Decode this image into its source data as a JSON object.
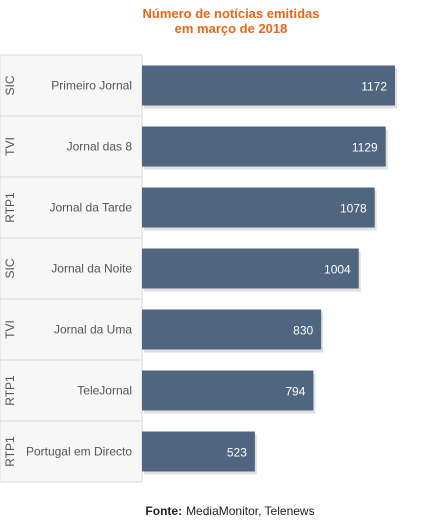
{
  "chart_data": {
    "type": "bar",
    "orientation": "horizontal",
    "title_line1": "Número de notícias emitidas",
    "title_line2": "em março de 2018",
    "categories": [
      "Primeiro Jornal",
      "Jornal das 8",
      "Jornal da Tarde",
      "Jornal da Noite",
      "Jornal da Uma",
      "TeleJornal",
      "Portugal em Directo"
    ],
    "channels": [
      "SIC",
      "TVI",
      "RTP1",
      "SIC",
      "TVI",
      "RTP1",
      "RTP1"
    ],
    "series": [
      {
        "values": [
          1172,
          1129,
          1078,
          1004,
          830,
          794,
          523
        ]
      }
    ],
    "xlim": [
      0,
      1200
    ],
    "grid": false,
    "legend": "none",
    "bar_color": "#4f6580"
  },
  "source": {
    "label": "Fonte:",
    "text": "MediaMonitor, Telenews"
  }
}
